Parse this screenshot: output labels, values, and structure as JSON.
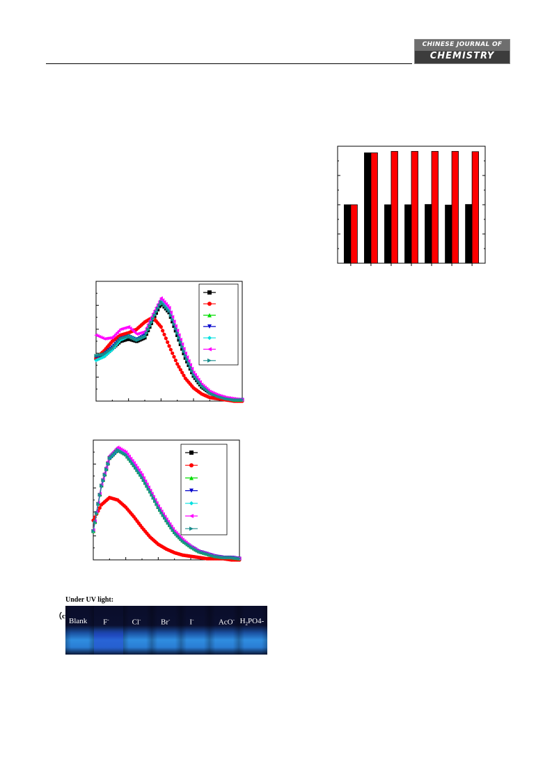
{
  "header": {
    "journal_line1": "CHINESE JOURNAL OF",
    "journal_line2": "CHEMISTRY"
  },
  "figures": {
    "photo": {
      "title": "Under UV light:",
      "panel_label": "（c）",
      "vials": [
        {
          "label": "Blank",
          "sup": "",
          "sub": "",
          "tail": ""
        },
        {
          "label": "F",
          "sup": "-",
          "sub": "",
          "tail": ""
        },
        {
          "label": "Cl",
          "sup": "-",
          "sub": "",
          "tail": ""
        },
        {
          "label": "Br",
          "sup": "-",
          "sub": "",
          "tail": ""
        },
        {
          "label": "I",
          "sup": "-",
          "sub": "",
          "tail": ""
        },
        {
          "label": "AcO",
          "sup": "-",
          "sub": "",
          "tail": ""
        },
        {
          "label": "H",
          "sup": "",
          "sub": "2",
          "tail": "PO4-"
        }
      ]
    }
  },
  "chart_data": [
    {
      "type": "bar",
      "categories": [
        "",
        "",
        "",
        "",
        "",
        "",
        ""
      ],
      "ylim": [
        0,
        8
      ],
      "grid": false,
      "series": [
        {
          "color": "#000000",
          "values": [
            4.0,
            7.55,
            4.0,
            4.0,
            4.02,
            3.98,
            4.02
          ]
        },
        {
          "color": "#ff0000",
          "values": [
            4.0,
            7.55,
            7.65,
            7.65,
            7.65,
            7.65,
            7.63
          ]
        }
      ]
    },
    {
      "type": "line",
      "xlim": [
        0,
        9
      ],
      "ylim": [
        0,
        1.0
      ],
      "legend": "top-right",
      "x": [
        0,
        0.5,
        1,
        1.5,
        2,
        2.5,
        3,
        3.5,
        4,
        4.5,
        5,
        5.5,
        6,
        6.5,
        7,
        7.5,
        8,
        8.5,
        9
      ],
      "series": [
        {
          "color": "#000000",
          "marker": "square",
          "values": [
            0.36,
            0.38,
            0.44,
            0.5,
            0.52,
            0.5,
            0.53,
            0.68,
            0.82,
            0.74,
            0.55,
            0.36,
            0.21,
            0.12,
            0.07,
            0.04,
            0.02,
            0.01,
            0.01
          ]
        },
        {
          "color": "#ff0000",
          "marker": "circle",
          "values": [
            0.36,
            0.42,
            0.5,
            0.55,
            0.57,
            0.6,
            0.66,
            0.7,
            0.62,
            0.46,
            0.31,
            0.19,
            0.11,
            0.06,
            0.03,
            0.02,
            0.01,
            0.0,
            0.0
          ]
        },
        {
          "color": "#00dd00",
          "marker": "triangle-up",
          "values": [
            0.38,
            0.4,
            0.45,
            0.52,
            0.55,
            0.52,
            0.55,
            0.7,
            0.84,
            0.76,
            0.57,
            0.38,
            0.23,
            0.13,
            0.08,
            0.05,
            0.03,
            0.01,
            0.01
          ]
        },
        {
          "color": "#0000cc",
          "marker": "triangle-down",
          "values": [
            0.37,
            0.39,
            0.45,
            0.52,
            0.54,
            0.51,
            0.55,
            0.69,
            0.83,
            0.75,
            0.56,
            0.37,
            0.22,
            0.13,
            0.07,
            0.04,
            0.02,
            0.01,
            0.01
          ]
        },
        {
          "color": "#00e0e0",
          "marker": "diamond",
          "values": [
            0.34,
            0.37,
            0.43,
            0.51,
            0.54,
            0.51,
            0.54,
            0.69,
            0.84,
            0.76,
            0.57,
            0.38,
            0.22,
            0.13,
            0.07,
            0.04,
            0.02,
            0.01,
            0.01
          ]
        },
        {
          "color": "#ff00ff",
          "marker": "triangle-left",
          "values": [
            0.55,
            0.52,
            0.53,
            0.6,
            0.62,
            0.56,
            0.58,
            0.73,
            0.86,
            0.78,
            0.59,
            0.4,
            0.24,
            0.14,
            0.08,
            0.05,
            0.03,
            0.02,
            0.01
          ]
        },
        {
          "color": "#1a8c8c",
          "marker": "triangle-right",
          "values": [
            0.38,
            0.39,
            0.44,
            0.52,
            0.54,
            0.51,
            0.54,
            0.69,
            0.83,
            0.75,
            0.57,
            0.38,
            0.22,
            0.13,
            0.07,
            0.04,
            0.02,
            0.01,
            0.01
          ]
        }
      ]
    },
    {
      "type": "line",
      "xlim": [
        0,
        9
      ],
      "ylim": [
        0,
        1.0
      ],
      "legend": "top-right",
      "x": [
        0,
        0.5,
        1,
        1.5,
        2,
        2.5,
        3,
        3.5,
        4,
        4.5,
        5,
        5.5,
        6,
        6.5,
        7,
        7.5,
        8,
        8.5,
        9
      ],
      "series": [
        {
          "color": "#000000",
          "marker": "square",
          "values": [
            0.24,
            0.62,
            0.85,
            0.92,
            0.88,
            0.79,
            0.69,
            0.57,
            0.44,
            0.33,
            0.23,
            0.16,
            0.11,
            0.07,
            0.05,
            0.03,
            0.02,
            0.02,
            0.01
          ]
        },
        {
          "color": "#ff0000",
          "marker": "circle",
          "values": [
            0.33,
            0.46,
            0.52,
            0.5,
            0.44,
            0.36,
            0.27,
            0.19,
            0.13,
            0.09,
            0.06,
            0.04,
            0.03,
            0.02,
            0.01,
            0.01,
            0.01,
            0.0,
            0.0
          ]
        },
        {
          "color": "#00dd00",
          "marker": "triangle-up",
          "values": [
            0.24,
            0.62,
            0.85,
            0.92,
            0.88,
            0.79,
            0.69,
            0.57,
            0.44,
            0.33,
            0.23,
            0.16,
            0.11,
            0.07,
            0.05,
            0.03,
            0.02,
            0.02,
            0.01
          ]
        },
        {
          "color": "#0000cc",
          "marker": "triangle-down",
          "values": [
            0.24,
            0.61,
            0.84,
            0.91,
            0.88,
            0.79,
            0.69,
            0.57,
            0.44,
            0.33,
            0.23,
            0.16,
            0.11,
            0.07,
            0.05,
            0.03,
            0.02,
            0.02,
            0.01
          ]
        },
        {
          "color": "#00e0e0",
          "marker": "diamond",
          "values": [
            0.24,
            0.62,
            0.85,
            0.92,
            0.88,
            0.79,
            0.69,
            0.57,
            0.44,
            0.33,
            0.23,
            0.16,
            0.11,
            0.07,
            0.05,
            0.03,
            0.02,
            0.02,
            0.01
          ]
        },
        {
          "color": "#ff00ff",
          "marker": "triangle-left",
          "values": [
            0.25,
            0.63,
            0.87,
            0.94,
            0.9,
            0.81,
            0.71,
            0.58,
            0.45,
            0.34,
            0.24,
            0.17,
            0.11,
            0.07,
            0.05,
            0.03,
            0.02,
            0.02,
            0.01
          ]
        },
        {
          "color": "#1a8c8c",
          "marker": "triangle-right",
          "values": [
            0.24,
            0.62,
            0.85,
            0.92,
            0.88,
            0.79,
            0.69,
            0.57,
            0.44,
            0.33,
            0.23,
            0.16,
            0.11,
            0.07,
            0.05,
            0.03,
            0.02,
            0.02,
            0.01
          ]
        }
      ]
    }
  ]
}
